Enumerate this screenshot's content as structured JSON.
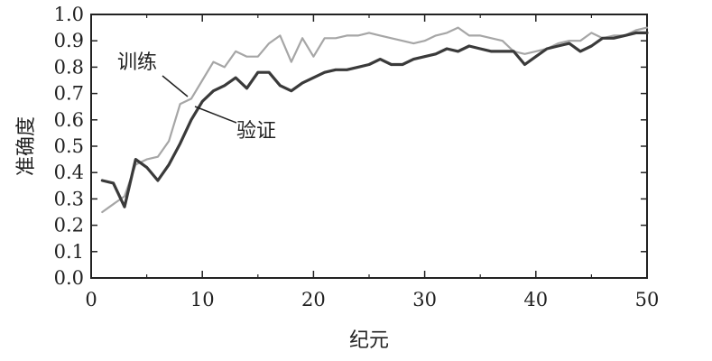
{
  "chart_data": {
    "type": "line",
    "title": "",
    "xlabel": "纪元",
    "ylabel": "准确度",
    "xlim": [
      0,
      50
    ],
    "ylim": [
      0.0,
      1.0
    ],
    "grid": false,
    "legend": "none",
    "x_ticks": [
      "0",
      "10",
      "20",
      "30",
      "40",
      "50"
    ],
    "y_ticks": [
      "0.0",
      "0.1",
      "0.2",
      "0.3",
      "0.4",
      "0.5",
      "0.6",
      "0.7",
      "0.8",
      "0.9",
      "1.0"
    ],
    "series": [
      {
        "name": "训练",
        "color": "#a6a6a6",
        "x": [
          1,
          2,
          3,
          4,
          5,
          6,
          7,
          8,
          9,
          10,
          11,
          12,
          13,
          14,
          15,
          16,
          17,
          18,
          19,
          20,
          21,
          22,
          23,
          24,
          25,
          26,
          27,
          28,
          29,
          30,
          31,
          32,
          33,
          34,
          35,
          36,
          37,
          38,
          39,
          40,
          41,
          42,
          43,
          44,
          45,
          46,
          47,
          48,
          49,
          50
        ],
        "values": [
          0.25,
          0.28,
          0.31,
          0.43,
          0.45,
          0.46,
          0.52,
          0.66,
          0.68,
          0.75,
          0.82,
          0.8,
          0.86,
          0.84,
          0.84,
          0.89,
          0.92,
          0.82,
          0.91,
          0.84,
          0.91,
          0.91,
          0.92,
          0.92,
          0.93,
          0.92,
          0.91,
          0.9,
          0.89,
          0.9,
          0.92,
          0.93,
          0.95,
          0.92,
          0.92,
          0.91,
          0.9,
          0.86,
          0.85,
          0.86,
          0.87,
          0.89,
          0.9,
          0.9,
          0.93,
          0.91,
          0.92,
          0.92,
          0.94,
          0.95
        ]
      },
      {
        "name": "验证",
        "color": "#3a3a3a",
        "x": [
          1,
          2,
          3,
          4,
          5,
          6,
          7,
          8,
          9,
          10,
          11,
          12,
          13,
          14,
          15,
          16,
          17,
          18,
          19,
          20,
          21,
          22,
          23,
          24,
          25,
          26,
          27,
          28,
          29,
          30,
          31,
          32,
          33,
          34,
          35,
          36,
          37,
          38,
          39,
          40,
          41,
          42,
          43,
          44,
          45,
          46,
          47,
          48,
          49,
          50
        ],
        "values": [
          0.37,
          0.36,
          0.27,
          0.45,
          0.42,
          0.37,
          0.43,
          0.51,
          0.6,
          0.67,
          0.71,
          0.73,
          0.76,
          0.72,
          0.78,
          0.78,
          0.73,
          0.71,
          0.74,
          0.76,
          0.78,
          0.79,
          0.79,
          0.8,
          0.81,
          0.83,
          0.81,
          0.81,
          0.83,
          0.84,
          0.85,
          0.87,
          0.86,
          0.88,
          0.87,
          0.86,
          0.86,
          0.86,
          0.81,
          0.84,
          0.87,
          0.88,
          0.89,
          0.86,
          0.88,
          0.91,
          0.91,
          0.92,
          0.93,
          0.93
        ]
      }
    ]
  },
  "annotations": {
    "train_label": "训练",
    "val_label": "验证"
  }
}
